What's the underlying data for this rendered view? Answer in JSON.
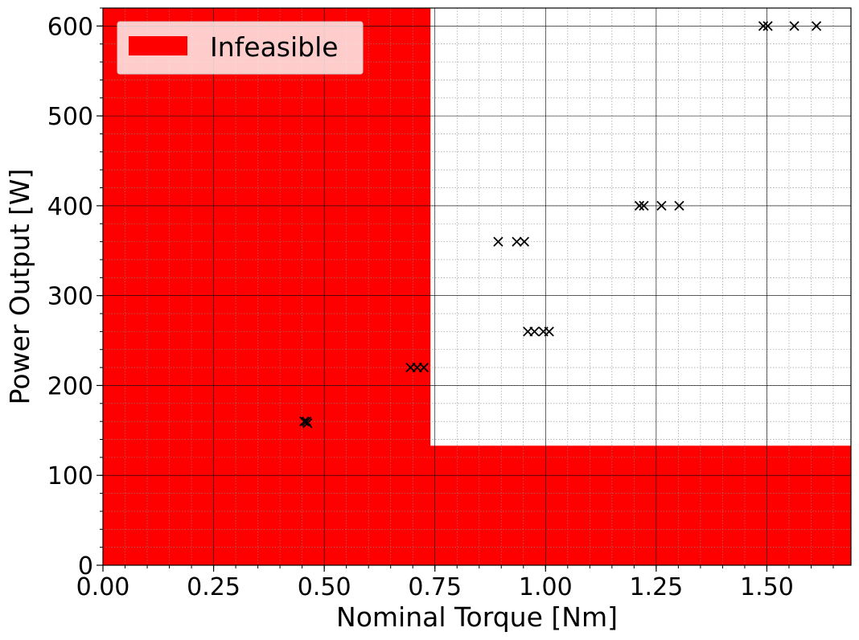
{
  "chart_data": {
    "type": "scatter",
    "xlabel": "Nominal Torque [Nm]",
    "ylabel": "Power Output [W]",
    "xlim": [
      0.0,
      1.69
    ],
    "ylim": [
      0,
      620
    ],
    "x_ticks": [
      "0.00",
      "0.25",
      "0.50",
      "0.75",
      "1.00",
      "1.25",
      "1.50"
    ],
    "x_tick_values": [
      0.0,
      0.25,
      0.5,
      0.75,
      1.0,
      1.25,
      1.5
    ],
    "y_ticks": [
      "0",
      "100",
      "200",
      "300",
      "400",
      "500",
      "600"
    ],
    "y_tick_values": [
      0,
      100,
      200,
      300,
      400,
      500,
      600
    ],
    "grid": {
      "major": true,
      "minor": true
    },
    "legend": {
      "position": "top-left",
      "entries": [
        {
          "label": "Infeasible",
          "color": "#ff0000"
        }
      ]
    },
    "infeasible_region": {
      "color": "#ff0000",
      "torque_limit": 0.74,
      "power_limit": 133
    },
    "marker": "x",
    "marker_color": "#000000",
    "points": [
      {
        "x": 0.455,
        "y": 160
      },
      {
        "x": 0.46,
        "y": 160
      },
      {
        "x": 0.462,
        "y": 158
      },
      {
        "x": 0.695,
        "y": 220
      },
      {
        "x": 0.71,
        "y": 220
      },
      {
        "x": 0.725,
        "y": 220
      },
      {
        "x": 0.893,
        "y": 360
      },
      {
        "x": 0.935,
        "y": 360
      },
      {
        "x": 0.952,
        "y": 360
      },
      {
        "x": 0.96,
        "y": 260
      },
      {
        "x": 0.975,
        "y": 260
      },
      {
        "x": 0.995,
        "y": 260
      },
      {
        "x": 1.008,
        "y": 260
      },
      {
        "x": 1.212,
        "y": 400
      },
      {
        "x": 1.222,
        "y": 400
      },
      {
        "x": 1.262,
        "y": 400
      },
      {
        "x": 1.302,
        "y": 400
      },
      {
        "x": 1.492,
        "y": 600
      },
      {
        "x": 1.502,
        "y": 600
      },
      {
        "x": 1.562,
        "y": 600
      },
      {
        "x": 1.612,
        "y": 600
      }
    ]
  }
}
